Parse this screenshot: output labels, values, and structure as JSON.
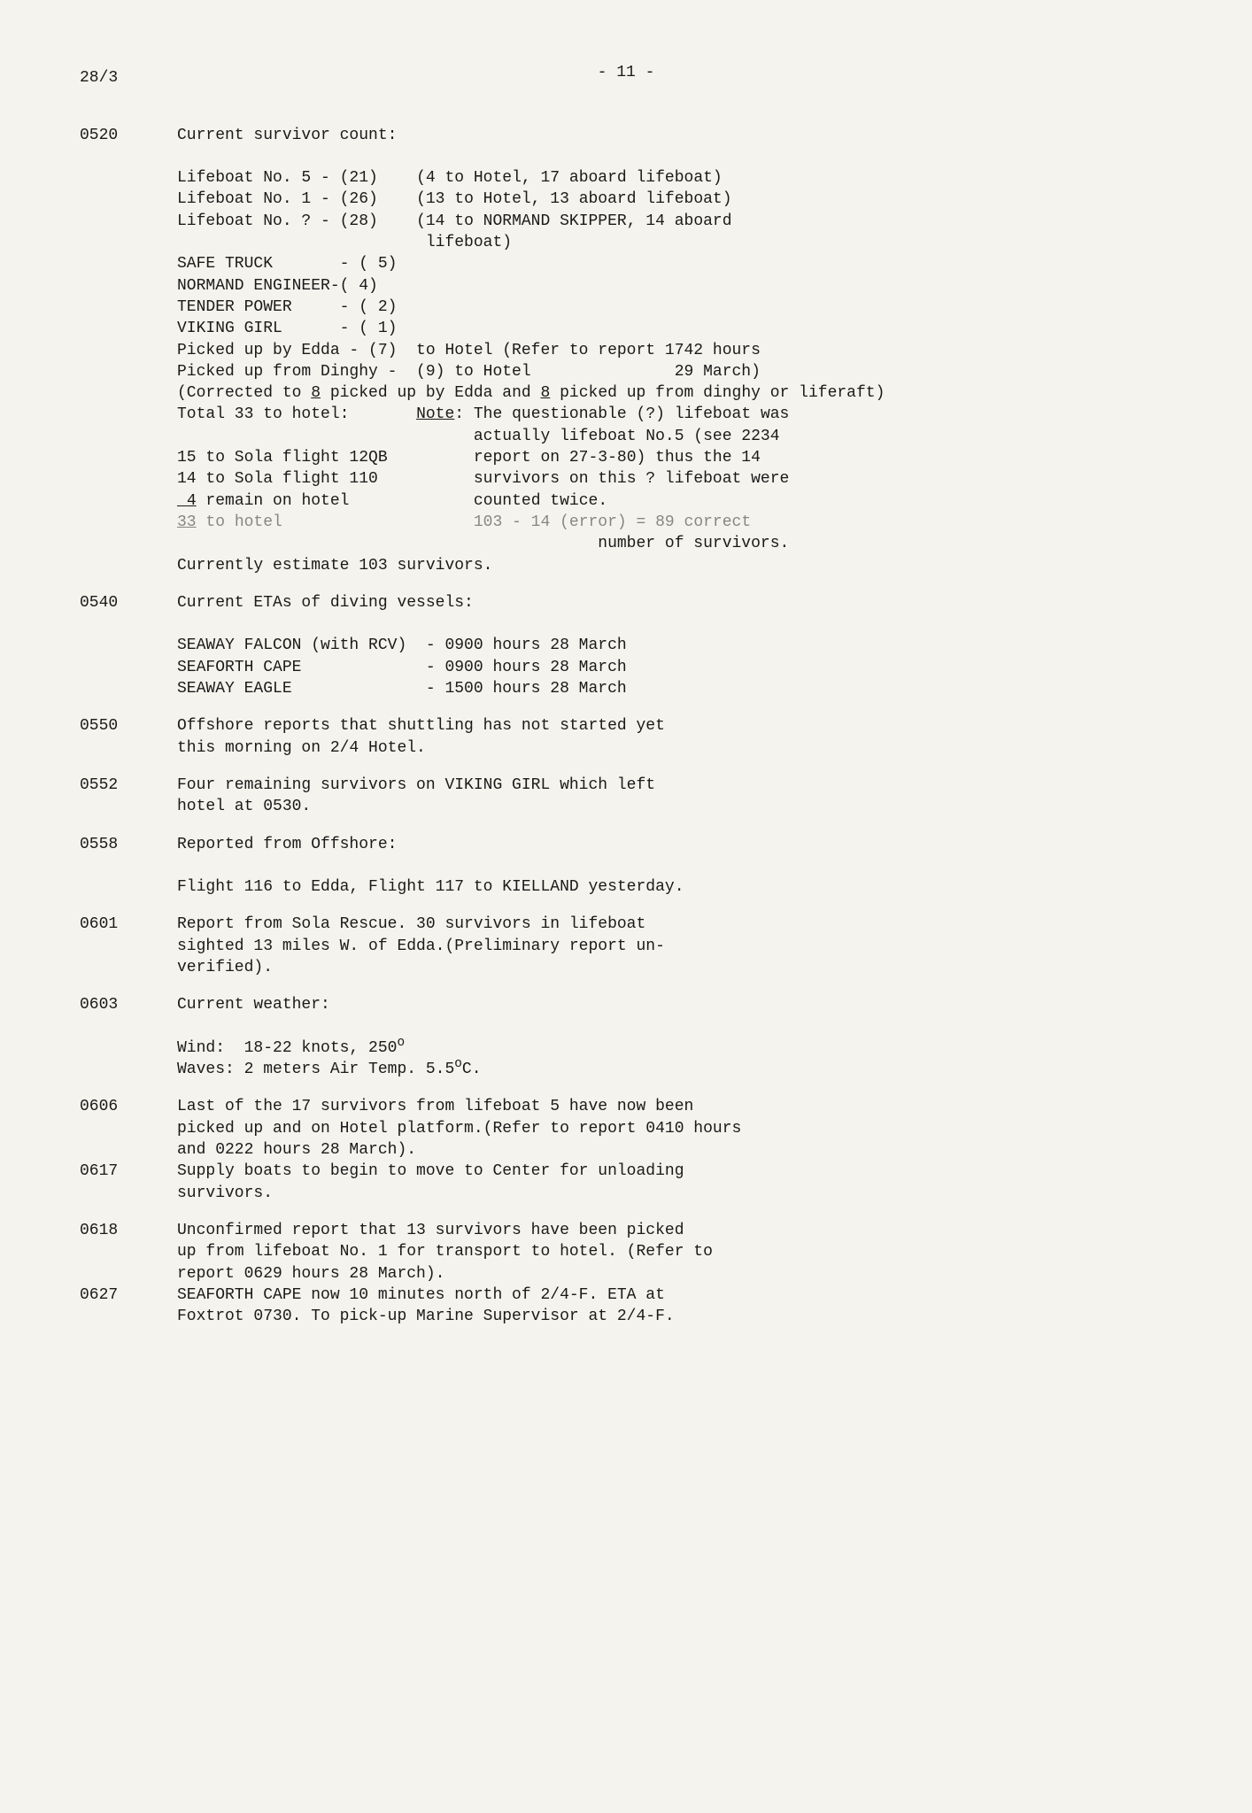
{
  "page_number": "- 11 -",
  "date": "28/3",
  "bg_color": "#f5f3ed",
  "text_color": "#1a1a1a",
  "font_family": "Courier New",
  "base_font_size_pt": 14,
  "entries": [
    {
      "time": "0520",
      "heading": "Current survivor count:",
      "lifeboats": [
        {
          "label": "Lifeboat No. 5 - (21)",
          "note": "(4 to Hotel, 17 aboard lifeboat)"
        },
        {
          "label": "Lifeboat No. 1 - (26)",
          "note": "(13 to Hotel, 13 aboard lifeboat)"
        },
        {
          "label": "Lifeboat No. ? - (28)",
          "note": "(14 to NORMAND SKIPPER, 14 aboard"
        },
        {
          "label": "",
          "note": " lifeboat)"
        }
      ],
      "vessels": [
        "SAFE TRUCK       - ( 5)",
        "NORMAND ENGINEER-( 4)",
        "TENDER POWER     - ( 2)",
        "VIKING GIRL      - ( 1)"
      ],
      "picked_up_lines": [
        "Picked up by Edda - (7)  to Hotel (Refer to report 1742 hours",
        "Picked up from Dinghy -  (9) to Hotel               29 March)"
      ],
      "corrected_prefix": "(Corrected to ",
      "corrected_eight_1": "8",
      "corrected_mid": " picked up by Edda and ",
      "corrected_eight_2": "8",
      "corrected_suffix": " picked up from dinghy or liferaft)",
      "total_label": "Total 33 to hotel:",
      "note_label": "Note",
      "note_text_1": ": The questionable (?) lifeboat was",
      "sola_lines": [
        {
          "left": "",
          "right": "actually lifeboat No.5 (see 2234"
        },
        {
          "left": "15 to Sola flight 12QB",
          "right": "report on 27-3-80) thus the 14"
        },
        {
          "left": "14 to Sola flight 110",
          "right": "survivors on this ? lifeboat were"
        }
      ],
      "remain_underlined": " 4",
      "remain_rest": " remain on hotel",
      "remain_right": "counted twice.",
      "hotel33_left": "33",
      "hotel33_rest": " to hotel",
      "hotel33_right": "103 - 14 (error) = 89 correct",
      "num_survivors_right": "number of survivors.",
      "currently": "Currently estimate 103 survivors."
    },
    {
      "time": "0540",
      "heading": "Current ETAs of diving vessels:",
      "eta_lines": [
        "SEAWAY FALCON (with RCV)  - 0900 hours 28 March",
        "SEAFORTH CAPE             - 0900 hours 28 March",
        "SEAWAY EAGLE              - 1500 hours 28 March"
      ]
    },
    {
      "time": "0550",
      "text": "Offshore reports that shuttling has not started yet\nthis morning on 2/4 Hotel."
    },
    {
      "time": "0552",
      "text": "Four remaining survivors on VIKING GIRL which left\nhotel at 0530."
    },
    {
      "time": "0558",
      "heading": "Reported from Offshore:",
      "text": "Flight 116 to Edda, Flight 117 to KIELLAND yesterday."
    },
    {
      "time": "0601",
      "text": "Report from Sola Rescue. 30 survivors in lifeboat\nsighted 13 miles W. of Edda.(Preliminary report un-\nverified)."
    },
    {
      "time": "0603",
      "heading": "Current weather:",
      "wind_prefix": "Wind:  18-22 knots, 250",
      "degree": "o",
      "waves_prefix": "Waves: 2 meters Air Temp. 5.5",
      "waves_suffix": "C."
    },
    {
      "time": "0606",
      "text": "Last of the 17 survivors from lifeboat 5 have now been\npicked up and on Hotel platform.(Refer to report 0410 hours\nand 0222 hours 28 March)."
    },
    {
      "time": "0617",
      "text": "Supply boats to begin to move to Center for unloading\nsurvivors."
    },
    {
      "time": "0618",
      "text": "Unconfirmed report that 13 survivors have been picked\nup from lifeboat No. 1 for transport to hotel. (Refer to\nreport 0629 hours 28 March)."
    },
    {
      "time": "0627",
      "text": "SEAFORTH CAPE now 10 minutes north of 2/4-F. ETA at\nFoxtrot 0730. To pick-up Marine Supervisor at 2/4-F."
    }
  ]
}
